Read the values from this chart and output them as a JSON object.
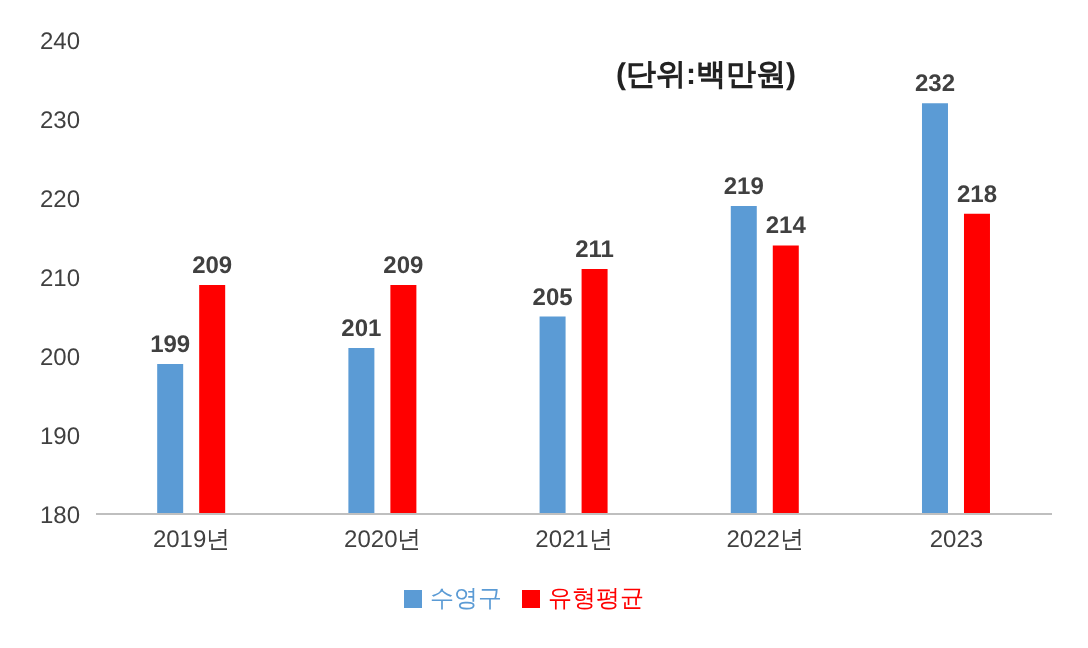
{
  "chart_data": {
    "type": "bar",
    "annotations": [
      "(단위:백만원)"
    ],
    "categories": [
      "2019년",
      "2020년",
      "2021년",
      "2022년",
      "2023"
    ],
    "series": [
      {
        "name": "수영구",
        "color": "#5b9bd5",
        "values": [
          199,
          201,
          205,
          219,
          232
        ]
      },
      {
        "name": "유형평균",
        "color": "#ff0000",
        "values": [
          209,
          209,
          211,
          214,
          218
        ]
      }
    ],
    "ylim": [
      180,
      240
    ],
    "yticks": [
      180,
      190,
      200,
      210,
      220,
      230,
      240
    ],
    "grid": false,
    "legend": "bottom",
    "data_labels": true
  }
}
